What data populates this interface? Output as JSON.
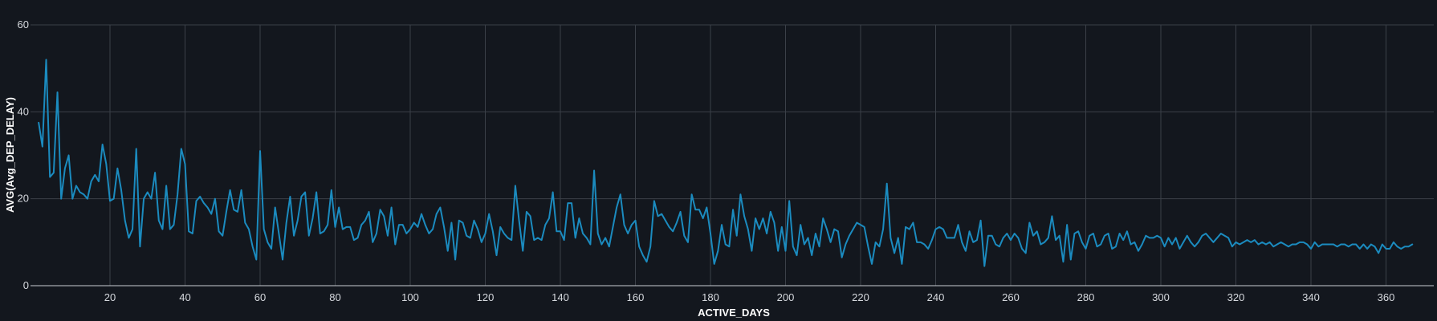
{
  "chart_data": {
    "type": "line",
    "title": "",
    "xlabel": "ACTIVE_DAYS",
    "ylabel": "AVG(Avg_DEP_DELAY)",
    "xlim": [
      0,
      365
    ],
    "ylim": [
      0,
      60
    ],
    "x_ticks": [
      20,
      40,
      60,
      80,
      100,
      120,
      140,
      160,
      180,
      200,
      220,
      240,
      260,
      280,
      300,
      320,
      340,
      360
    ],
    "y_ticks": [
      0,
      20,
      40,
      60
    ],
    "grid": true,
    "line_color": "#1b8bbf",
    "x_start": 1,
    "x_step": 1,
    "series": [
      {
        "values": [
          37.5,
          32,
          52,
          25,
          26,
          44.5,
          20,
          27,
          30,
          20,
          23,
          21.5,
          21,
          20,
          24,
          25.5,
          24,
          32.5,
          28,
          19.5,
          20,
          27,
          22,
          15,
          11,
          13,
          31.5,
          9,
          20,
          21.5,
          20,
          26,
          15,
          13,
          23,
          13,
          14,
          21,
          31.5,
          28,
          12.5,
          12,
          19.5,
          20.5,
          19,
          18,
          16.5,
          20,
          12.5,
          11.5,
          17,
          22,
          17.5,
          17,
          22,
          14.5,
          13,
          9,
          6,
          31,
          13,
          10,
          8.5,
          18,
          12,
          6,
          14.5,
          20.5,
          11.5,
          15,
          20.5,
          21.5,
          11.5,
          15.5,
          21.5,
          12,
          12.5,
          14,
          22,
          13.5,
          18,
          13,
          13.5,
          13.5,
          10.5,
          11,
          14,
          15,
          17,
          10,
          12,
          17.5,
          16,
          11.5,
          18,
          9.5,
          14,
          14,
          12,
          13,
          14.5,
          13.5,
          16.5,
          14,
          12,
          13,
          16.5,
          18,
          13.5,
          8,
          14.5,
          6,
          15,
          14.5,
          11.5,
          11,
          15,
          13,
          10,
          12,
          16.5,
          12.5,
          7,
          13.5,
          12,
          11,
          10.5,
          23,
          15,
          8,
          17,
          16,
          10.5,
          11,
          10.5,
          14,
          15.5,
          21.5,
          12.5,
          12.5,
          10.5,
          19,
          19,
          11,
          15.5,
          12,
          11,
          9.5,
          26.5,
          12,
          9.5,
          11,
          9,
          13.5,
          18,
          21,
          14,
          12,
          14,
          15,
          9,
          7,
          5.5,
          9,
          19.5,
          16,
          16.5,
          15,
          13.5,
          12.5,
          14.5,
          17,
          11.5,
          10,
          21,
          17.5,
          17.5,
          15.5,
          18,
          12,
          5,
          8,
          14,
          9.5,
          9,
          17.5,
          11.5,
          21,
          16,
          13,
          8,
          15.5,
          13,
          15.5,
          12,
          17,
          14.5,
          8,
          13.5,
          8,
          19.5,
          9,
          7,
          14,
          9.5,
          11,
          7,
          12,
          9,
          15.5,
          13,
          10,
          13,
          12.5,
          6.5,
          9.5,
          11.5,
          13,
          14.5,
          14,
          13.5,
          9,
          5,
          10,
          9,
          13,
          23.5,
          11,
          7.5,
          11,
          5,
          13.5,
          13,
          14.5,
          10,
          10,
          9.5,
          8.5,
          10.5,
          13,
          13.5,
          13,
          11,
          11,
          11,
          14,
          10,
          8,
          12.5,
          10,
          10.5,
          15,
          4.5,
          11.5,
          11.5,
          9.5,
          9,
          11,
          12,
          10.5,
          12,
          11,
          8.5,
          7.5,
          14.5,
          11.5,
          12.5,
          9.5,
          10,
          11,
          16,
          10.5,
          11.5,
          5.5,
          14,
          6,
          12,
          12.5,
          10,
          8.5,
          11.5,
          12,
          9,
          9.5,
          11.5,
          12,
          8.5,
          9,
          12,
          10.5,
          12.5,
          9.5,
          10,
          8,
          9.5,
          11.5,
          11,
          11,
          11.5,
          11,
          9,
          11,
          9.5,
          11,
          8.5,
          10,
          11.5,
          10,
          9,
          10,
          11.5,
          12,
          11,
          10,
          11,
          12,
          11.5,
          11,
          9,
          10,
          9.5,
          10,
          10.5,
          10,
          10.5,
          9.5,
          10,
          9.5,
          10,
          9,
          9.5,
          10,
          9.5,
          9,
          9.5,
          9.5,
          10,
          10,
          9.5,
          8.5,
          10,
          9,
          9.5,
          9.5,
          9.5,
          9.5,
          9,
          9.5,
          9.5,
          9,
          9.5,
          9.5,
          8.5,
          9.5,
          8.5,
          9.5,
          9,
          7.5,
          9.5,
          8.5,
          8.5,
          10,
          9,
          8.5,
          9,
          9,
          9.5
        ]
      }
    ]
  }
}
